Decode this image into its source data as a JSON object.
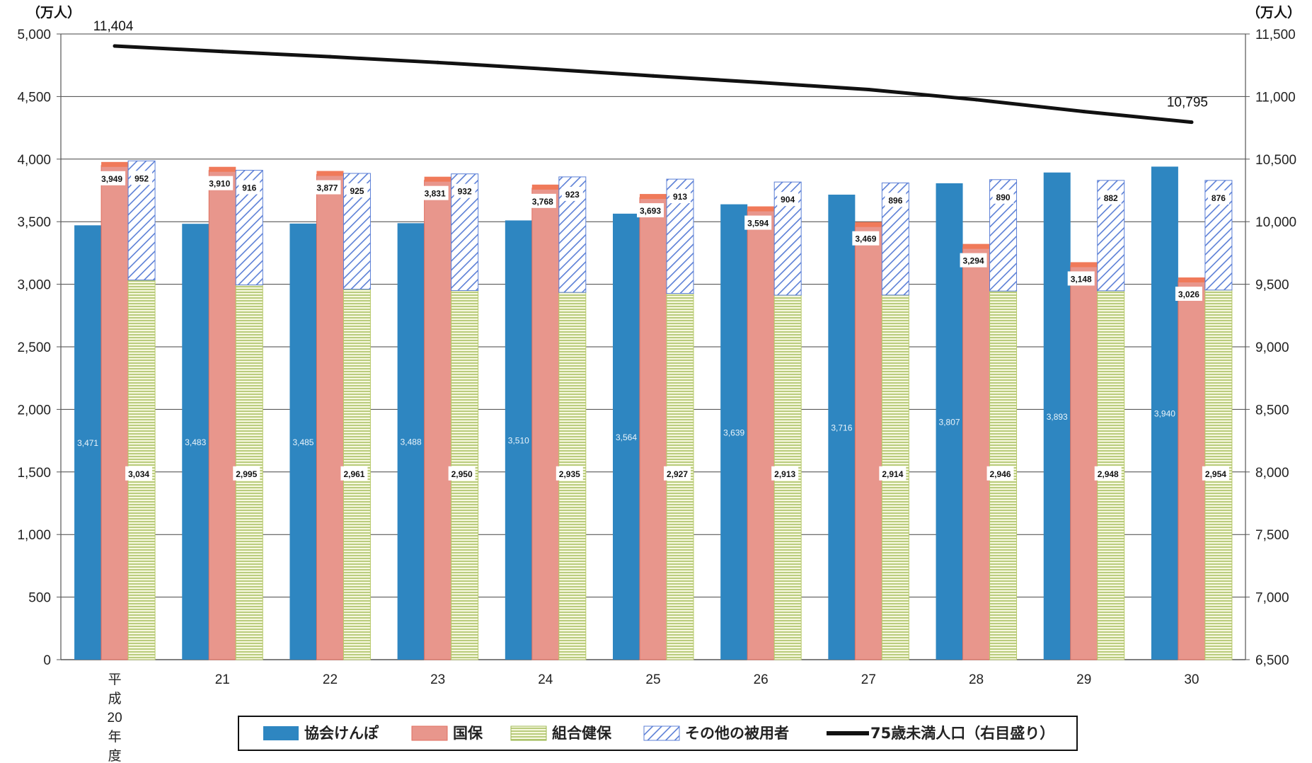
{
  "chart_data": {
    "type": "bar",
    "y_unit_left": "（万人）",
    "y_unit_right": "（万人）",
    "categories": [
      "平成20年度",
      "21",
      "22",
      "23",
      "24",
      "25",
      "26",
      "27",
      "28",
      "29",
      "30"
    ],
    "ylim_left": [
      0,
      5000
    ],
    "ylim_right": [
      6500,
      11500
    ],
    "yticks_left": [
      "0",
      "500",
      "1,000",
      "1,500",
      "2,000",
      "2,500",
      "3,000",
      "3,500",
      "4,000",
      "4,500",
      "5,000"
    ],
    "yticks_right": [
      "6,500",
      "7,000",
      "7,500",
      "8,000",
      "8,500",
      "9,000",
      "9,500",
      "10,000",
      "10,500",
      "11,000",
      "11,500"
    ],
    "grid": true,
    "legend_position": "bottom",
    "series": [
      {
        "name": "協会けんぽ",
        "kind": "bar",
        "color": "#2e86c1",
        "values": [
          3471,
          3483,
          3485,
          3488,
          3510,
          3564,
          3639,
          3716,
          3807,
          3893,
          3940
        ],
        "labels": [
          "3,471",
          "3,483",
          "3,485",
          "3,488",
          "3,510",
          "3,564",
          "3,639",
          "3,716",
          "3,807",
          "3,893",
          "3,940"
        ]
      },
      {
        "name": "国保",
        "kind": "bar",
        "color": "#e8968c",
        "values": [
          3949,
          3910,
          3877,
          3831,
          3768,
          3693,
          3594,
          3469,
          3294,
          3148,
          3026
        ],
        "labels": [
          "3,949",
          "3,910",
          "3,877",
          "3,831",
          "3,768",
          "3,693",
          "3,594",
          "3,469",
          "3,294",
          "3,148",
          "3,026"
        ]
      },
      {
        "name": "組合健保",
        "kind": "stacked-bottom",
        "color": "#c9dc8a",
        "values": [
          3034,
          2995,
          2961,
          2950,
          2935,
          2927,
          2913,
          2914,
          2946,
          2948,
          2954
        ],
        "labels": [
          "3,034",
          "2,995",
          "2,961",
          "2,950",
          "2,935",
          "2,927",
          "2,913",
          "2,914",
          "2,946",
          "2,948",
          "2,954"
        ]
      },
      {
        "name": "その他の被用者",
        "kind": "stacked-top",
        "color": "#5b7fd6",
        "values": [
          952,
          916,
          925,
          932,
          923,
          913,
          904,
          896,
          890,
          882,
          876
        ],
        "labels": [
          "952",
          "916",
          "925",
          "932",
          "923",
          "913",
          "904",
          "896",
          "890",
          "882",
          "876"
        ]
      },
      {
        "name": "75歳未満人口（右目盛り）",
        "kind": "line",
        "axis": "right",
        "color": "#111111",
        "values": [
          11404,
          11360,
          11318,
          11272,
          11220,
          11165,
          11112,
          11056,
          10975,
          10880,
          10795
        ],
        "labels": [
          "11,404",
          "",
          "",
          "",
          "",
          "",
          "",
          "",
          "",
          "",
          "10,795"
        ]
      }
    ]
  }
}
